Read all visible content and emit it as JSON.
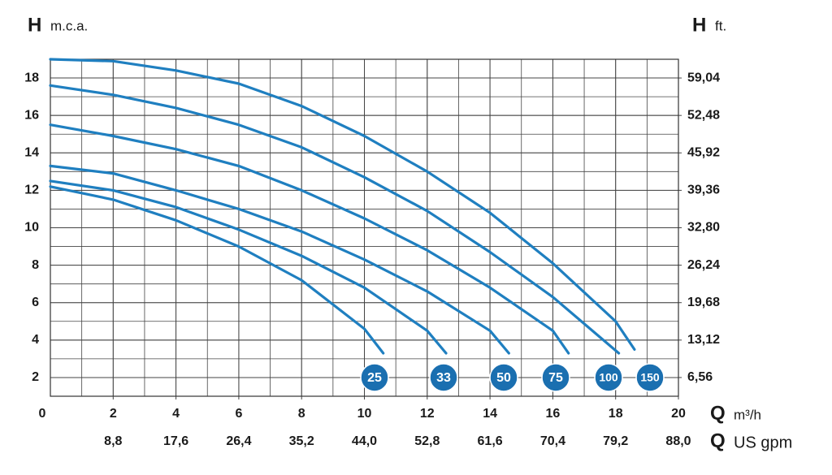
{
  "chart_data": {
    "type": "line",
    "y_label": {
      "symbol": "H",
      "unit": "m.c.a."
    },
    "y2_label": {
      "symbol": "H",
      "unit": "ft."
    },
    "x_label": {
      "symbol": "Q",
      "unit": "m³/h"
    },
    "x2_label": {
      "symbol": "Q",
      "unit": "US gpm"
    },
    "xlim": [
      0,
      20
    ],
    "xticks": [
      0,
      2,
      4,
      6,
      8,
      10,
      12,
      14,
      16,
      18,
      20
    ],
    "x2lim": [
      0,
      88
    ],
    "x2ticks": [
      {
        "value": 8.8,
        "label": "8,8"
      },
      {
        "value": 17.6,
        "label": "17,6"
      },
      {
        "value": 26.4,
        "label": "26,4"
      },
      {
        "value": 35.2,
        "label": "35,2"
      },
      {
        "value": 44.0,
        "label": "44,0"
      },
      {
        "value": 52.8,
        "label": "52,8"
      },
      {
        "value": 61.6,
        "label": "61,6"
      },
      {
        "value": 70.4,
        "label": "70,4"
      },
      {
        "value": 79.2,
        "label": "79,2"
      },
      {
        "value": 88.0,
        "label": "88,0"
      }
    ],
    "ylim": [
      1,
      19
    ],
    "yticks": [
      2,
      4,
      6,
      8,
      10,
      12,
      14,
      16,
      18
    ],
    "y2lim": [
      3.28,
      62.32
    ],
    "y2ticks": [
      {
        "value": 6.56,
        "label": "6,56"
      },
      {
        "value": 13.12,
        "label": "13,12"
      },
      {
        "value": 19.68,
        "label": "19,68"
      },
      {
        "value": 26.24,
        "label": "26,24"
      },
      {
        "value": 32.8,
        "label": "32,80"
      },
      {
        "value": 39.36,
        "label": "39,36"
      },
      {
        "value": 45.92,
        "label": "45,92"
      },
      {
        "value": 52.48,
        "label": "52,48"
      },
      {
        "value": 59.04,
        "label": "59,04"
      }
    ],
    "grid": true,
    "series": [
      {
        "name": "25",
        "color": "#1f7fc0",
        "x": [
          0,
          2,
          4,
          6,
          8,
          10,
          10.6
        ],
        "values": [
          12.2,
          11.5,
          10.4,
          9.0,
          7.2,
          4.6,
          3.3
        ]
      },
      {
        "name": "33",
        "color": "#1f7fc0",
        "x": [
          0,
          2,
          4,
          6,
          8,
          10,
          12,
          12.6
        ],
        "values": [
          12.5,
          12.0,
          11.1,
          9.9,
          8.5,
          6.8,
          4.5,
          3.3
        ]
      },
      {
        "name": "50",
        "color": "#1f7fc0",
        "x": [
          0,
          2,
          4,
          6,
          8,
          10,
          12,
          14,
          14.6
        ],
        "values": [
          13.3,
          12.9,
          12.0,
          11.0,
          9.8,
          8.3,
          6.6,
          4.5,
          3.3
        ]
      },
      {
        "name": "75",
        "color": "#1f7fc0",
        "x": [
          0,
          2,
          4,
          6,
          8,
          10,
          12,
          14,
          16,
          16.5
        ],
        "values": [
          15.5,
          14.9,
          14.2,
          13.3,
          12.0,
          10.5,
          8.8,
          6.8,
          4.5,
          3.3
        ]
      },
      {
        "name": "100",
        "color": "#1f7fc0",
        "x": [
          0,
          2,
          4,
          6,
          8,
          10,
          12,
          14,
          16,
          18.1
        ],
        "values": [
          17.6,
          17.1,
          16.4,
          15.5,
          14.3,
          12.7,
          10.9,
          8.7,
          6.3,
          3.3
        ]
      },
      {
        "name": "150",
        "color": "#1f7fc0",
        "x": [
          0,
          2,
          4,
          6,
          8,
          10,
          12,
          14,
          16,
          18,
          18.6
        ],
        "values": [
          19.0,
          18.9,
          18.4,
          17.7,
          16.5,
          14.9,
          13.0,
          10.8,
          8.1,
          5.0,
          3.5
        ]
      }
    ],
    "label_color": "#1a6fb0"
  }
}
